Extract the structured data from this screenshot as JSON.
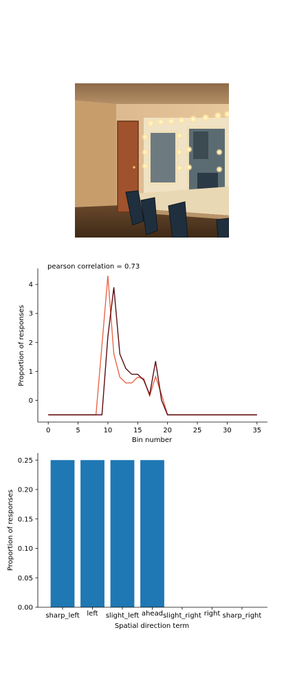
{
  "photo": {
    "subject": "dressing-room"
  },
  "chart_data": [
    {
      "type": "line",
      "title": "pearson correlation = 0.73",
      "xlabel": "Bin number",
      "ylabel": "Proportion of responses",
      "xlim": [
        -1.75,
        36.75
      ],
      "ylim": [
        -0.75,
        4.55
      ],
      "xticks": [
        0,
        5,
        10,
        15,
        20,
        25,
        30,
        35
      ],
      "yticks": [
        0,
        1,
        2,
        3,
        4
      ],
      "grid": false,
      "series": [
        {
          "color": "#e8664a",
          "x": [
            0,
            1,
            2,
            3,
            4,
            5,
            6,
            7,
            8,
            9,
            10,
            11,
            12,
            13,
            14,
            15,
            16,
            17,
            18,
            19,
            20,
            21,
            22,
            23,
            24,
            25,
            26,
            27,
            28,
            29,
            30,
            31,
            32,
            33,
            34,
            35
          ],
          "values": [
            -0.5,
            -0.5,
            -0.5,
            -0.5,
            -0.5,
            -0.5,
            -0.5,
            -0.5,
            -0.5,
            1.9,
            4.3,
            1.6,
            0.8,
            0.6,
            0.6,
            0.8,
            0.75,
            0.15,
            0.82,
            0.2,
            -0.5,
            -0.5,
            -0.5,
            -0.5,
            -0.5,
            -0.5,
            -0.5,
            -0.5,
            -0.5,
            -0.5,
            -0.5,
            -0.5,
            -0.5,
            -0.5,
            -0.5,
            -0.5
          ]
        },
        {
          "color": "#5a0a10",
          "x": [
            0,
            1,
            2,
            3,
            4,
            5,
            6,
            7,
            8,
            9,
            10,
            11,
            12,
            13,
            14,
            15,
            16,
            17,
            18,
            19,
            20,
            21,
            22,
            23,
            24,
            25,
            26,
            27,
            28,
            29,
            30,
            31,
            32,
            33,
            34,
            35
          ],
          "values": [
            -0.5,
            -0.5,
            -0.5,
            -0.5,
            -0.5,
            -0.5,
            -0.5,
            -0.5,
            -0.5,
            -0.5,
            2.2,
            3.9,
            1.6,
            1.1,
            0.9,
            0.9,
            0.7,
            0.2,
            1.35,
            0.0,
            -0.5,
            -0.5,
            -0.5,
            -0.5,
            -0.5,
            -0.5,
            -0.5,
            -0.5,
            -0.5,
            -0.5,
            -0.5,
            -0.5,
            -0.5,
            -0.5,
            -0.5,
            -0.5
          ]
        }
      ]
    },
    {
      "type": "bar",
      "xlabel": "Spatial direction term",
      "ylabel": "Proportion of responses",
      "categories": [
        "sharp_left",
        "left",
        "slight_left",
        "ahead",
        "slight_right",
        "right",
        "sharp_right"
      ],
      "values": [
        0.25,
        0.25,
        0.25,
        0.25,
        0.0,
        0.0,
        0.0
      ],
      "ylim": [
        0,
        0.262
      ],
      "yticks": [
        "0.00",
        "0.05",
        "0.10",
        "0.15",
        "0.20",
        "0.25"
      ],
      "color": "#1f77b4",
      "grid": false
    }
  ]
}
